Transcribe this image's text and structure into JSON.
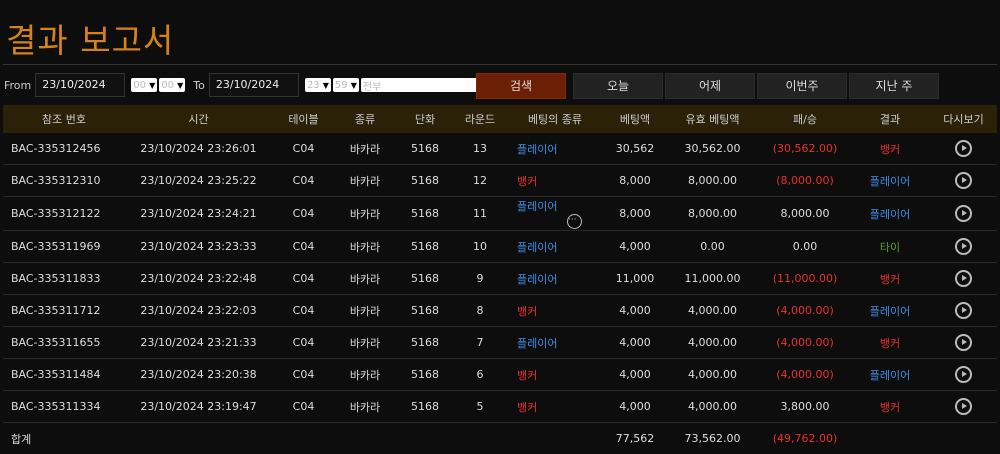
{
  "title": "결과 보고서",
  "filters": {
    "from_label": "From",
    "from_date": "23/10/2024",
    "from_hour": "00",
    "from_min": "00",
    "to_label": "To",
    "to_date": "23/10/2024",
    "to_hour": "23",
    "to_min": "59",
    "game_type": "전부"
  },
  "buttons": {
    "search": "검색",
    "today": "오늘",
    "yesterday": "어제",
    "this_week": "이번주",
    "last_week": "지난 주"
  },
  "columns": [
    "참조 번호",
    "시간",
    "테이블",
    "종류",
    "단화",
    "라운드",
    "베팅의 종류",
    "베팅액",
    "유효 베팅액",
    "패/승",
    "결과",
    "다시보기"
  ],
  "colors": {
    "player": "#3d8ee6",
    "banker": "#e8322a",
    "tie": "#5aa51e",
    "title": "#d4831c"
  },
  "rows": [
    {
      "ref": "BAC-335312456",
      "time": "23/10/2024 23:26:01",
      "table": "C04",
      "type": "바카라",
      "dealer": "5168",
      "round": "13",
      "bet_type": "플레이어",
      "bet": "30,562",
      "valid": "30,562.00",
      "winloss": "(30,562.00)",
      "result": "뱅커"
    },
    {
      "ref": "BAC-335312310",
      "time": "23/10/2024 23:25:22",
      "table": "C04",
      "type": "바카라",
      "dealer": "5168",
      "round": "12",
      "bet_type": "뱅커",
      "bet": "8,000",
      "valid": "8,000.00",
      "winloss": "(8,000.00)",
      "result": "플레이어"
    },
    {
      "ref": "BAC-335312122",
      "time": "23/10/2024 23:24:21",
      "table": "C04",
      "type": "바카라",
      "dealer": "5168",
      "round": "11",
      "bet_type": "플레이어",
      "more": true,
      "bet": "8,000",
      "valid": "8,000.00",
      "winloss": "8,000.00",
      "result": "플레이어"
    },
    {
      "ref": "BAC-335311969",
      "time": "23/10/2024 23:23:33",
      "table": "C04",
      "type": "바카라",
      "dealer": "5168",
      "round": "10",
      "bet_type": "플레이어",
      "bet": "4,000",
      "valid": "0.00",
      "winloss": "0.00",
      "result": "타이"
    },
    {
      "ref": "BAC-335311833",
      "time": "23/10/2024 23:22:48",
      "table": "C04",
      "type": "바카라",
      "dealer": "5168",
      "round": "9",
      "bet_type": "플레이어",
      "bet": "11,000",
      "valid": "11,000.00",
      "winloss": "(11,000.00)",
      "result": "뱅커"
    },
    {
      "ref": "BAC-335311712",
      "time": "23/10/2024 23:22:03",
      "table": "C04",
      "type": "바카라",
      "dealer": "5168",
      "round": "8",
      "bet_type": "뱅커",
      "bet": "4,000",
      "valid": "4,000.00",
      "winloss": "(4,000.00)",
      "result": "플레이어"
    },
    {
      "ref": "BAC-335311655",
      "time": "23/10/2024 23:21:33",
      "table": "C04",
      "type": "바카라",
      "dealer": "5168",
      "round": "7",
      "bet_type": "플레이어",
      "bet": "4,000",
      "valid": "4,000.00",
      "winloss": "(4,000.00)",
      "result": "뱅커"
    },
    {
      "ref": "BAC-335311484",
      "time": "23/10/2024 23:20:38",
      "table": "C04",
      "type": "바카라",
      "dealer": "5168",
      "round": "6",
      "bet_type": "뱅커",
      "bet": "4,000",
      "valid": "4,000.00",
      "winloss": "(4,000.00)",
      "result": "플레이어"
    },
    {
      "ref": "BAC-335311334",
      "time": "23/10/2024 23:19:47",
      "table": "C04",
      "type": "바카라",
      "dealer": "5168",
      "round": "5",
      "bet_type": "뱅커",
      "bet": "4,000",
      "valid": "4,000.00",
      "winloss": "3,800.00",
      "result": "뱅커"
    }
  ],
  "total": {
    "label": "합계",
    "bet": "77,562",
    "valid": "73,562.00",
    "winloss": "(49,762.00)"
  }
}
